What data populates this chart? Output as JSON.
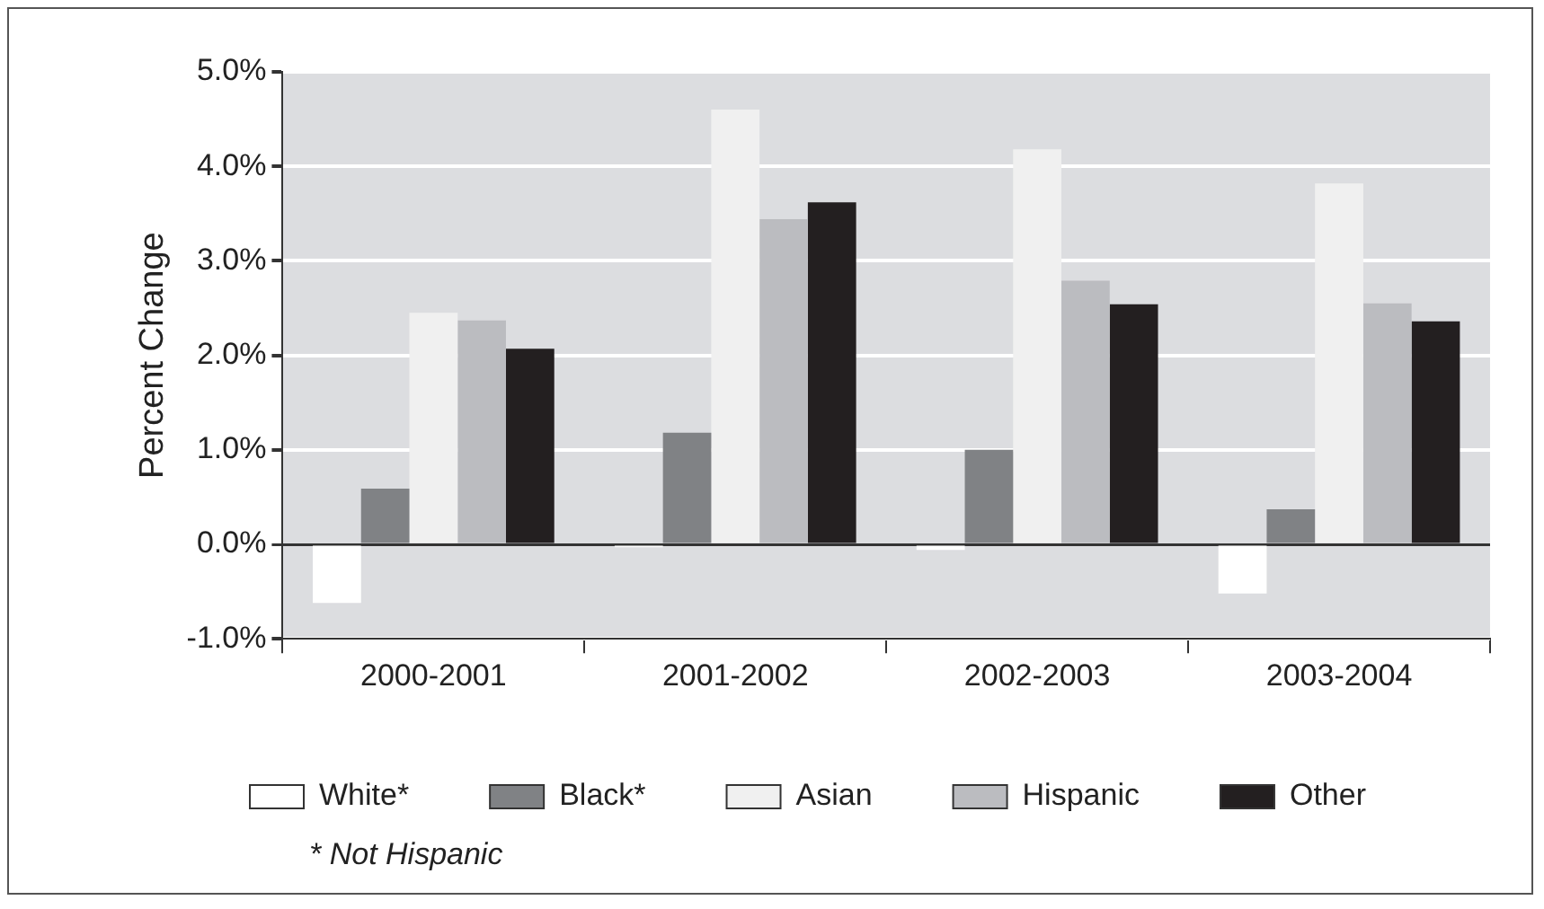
{
  "chart_data": {
    "type": "bar",
    "ylabel": "Percent Change",
    "categories": [
      "2000-2001",
      "2001-2002",
      "2002-2003",
      "2003-2004"
    ],
    "series": [
      {
        "name": "White*",
        "color": "#ffffff",
        "values": [
          -0.62,
          -0.03,
          -0.06,
          -0.52
        ]
      },
      {
        "name": "Black*",
        "color": "#808285",
        "values": [
          0.59,
          1.18,
          1.0,
          0.37
        ]
      },
      {
        "name": "Asian",
        "color": "#f0f0f0",
        "values": [
          2.45,
          4.6,
          4.18,
          3.82
        ]
      },
      {
        "name": "Hispanic",
        "color": "#bbbcc0",
        "values": [
          2.37,
          3.44,
          2.79,
          2.55
        ]
      },
      {
        "name": "Other",
        "color": "#231f20",
        "values": [
          2.07,
          3.62,
          2.54,
          2.36
        ]
      }
    ],
    "ylim": [
      -1,
      5
    ],
    "yticks": [
      {
        "value": -1,
        "label": "-1.0%"
      },
      {
        "value": 0,
        "label": "0.0%"
      },
      {
        "value": 1,
        "label": "1.0%"
      },
      {
        "value": 2,
        "label": "2.0%"
      },
      {
        "value": 3,
        "label": "3.0%"
      },
      {
        "value": 4,
        "label": "4.0%"
      },
      {
        "value": 5,
        "label": "5.0%"
      }
    ],
    "grid": "y",
    "legend": "bottom",
    "annotations": [
      "* Not Hispanic"
    ]
  }
}
